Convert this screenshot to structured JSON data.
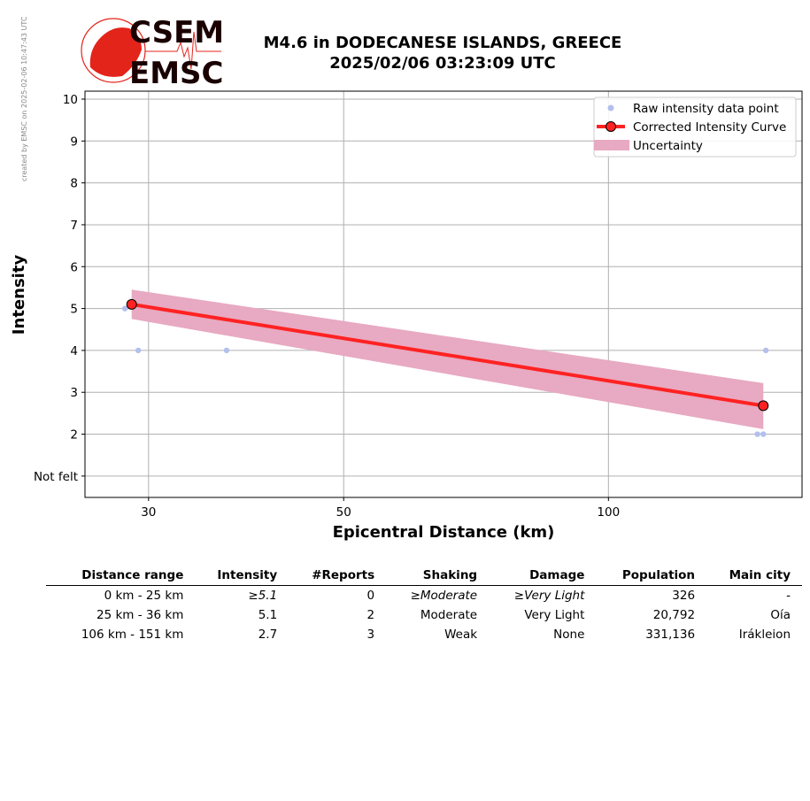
{
  "side_note": "created by EMSC on 2025-02-06 10:47:43 UTC",
  "logo": {
    "top": "CSEM",
    "bottom": "EMSC",
    "color": "#e3241b"
  },
  "title": {
    "line1": "M4.6 in DODECANESE ISLANDS, GREECE",
    "line2": "2025/02/06 03:23:09 UTC"
  },
  "chart_data": {
    "type": "line",
    "xlabel": "Epicentral Distance (km)",
    "ylabel": "Intensity",
    "xscale": "log",
    "xlim": [
      25.4,
      166
    ],
    "ylim": [
      0.49,
      10.19
    ],
    "xticks": [
      30,
      50,
      100
    ],
    "xtick_labels": [
      "30",
      "50",
      "100"
    ],
    "yticks": [
      1,
      2,
      3,
      4,
      5,
      6,
      7,
      8,
      9,
      10
    ],
    "ytick_labels": [
      "Not felt",
      "2",
      "3",
      "4",
      "5",
      "6",
      "7",
      "8",
      "9",
      "10"
    ],
    "grid": true,
    "legend": "top-right",
    "series": [
      {
        "name": "Raw intensity data point",
        "kind": "scatter",
        "color": "#b3bfec",
        "x": [
          28.2,
          29.2,
          36.8,
          151,
          147.7,
          150
        ],
        "y": [
          5,
          4,
          4,
          4,
          2,
          2
        ]
      },
      {
        "name": "Corrected Intensity Curve",
        "kind": "line",
        "color": "#ff2222",
        "x": [
          28.7,
          150
        ],
        "y": [
          5.1,
          2.68
        ]
      },
      {
        "name": "Uncertainty",
        "kind": "band",
        "color": "#e8a9c2",
        "x": [
          28.7,
          150
        ],
        "lower": [
          4.75,
          2.12
        ],
        "upper": [
          5.45,
          3.22
        ]
      }
    ]
  },
  "table": {
    "headers": [
      "Distance range",
      "Intensity",
      "#Reports",
      "Shaking",
      "Damage",
      "Population",
      "Main city"
    ],
    "rows": [
      {
        "cells": [
          "0 km -   25 km",
          "≥5.1",
          "0",
          "≥Moderate",
          "≥Very Light",
          "326",
          "-"
        ],
        "italic": [
          1,
          3,
          4
        ]
      },
      {
        "cells": [
          "25 km -   36 km",
          "5.1",
          "2",
          "Moderate",
          "Very Light",
          "20,792",
          "Oía"
        ],
        "italic": []
      },
      {
        "cells": [
          "106 km -  151 km",
          "2.7",
          "3",
          "Weak",
          "None",
          "331,136",
          "Irákleion"
        ],
        "italic": []
      }
    ]
  }
}
